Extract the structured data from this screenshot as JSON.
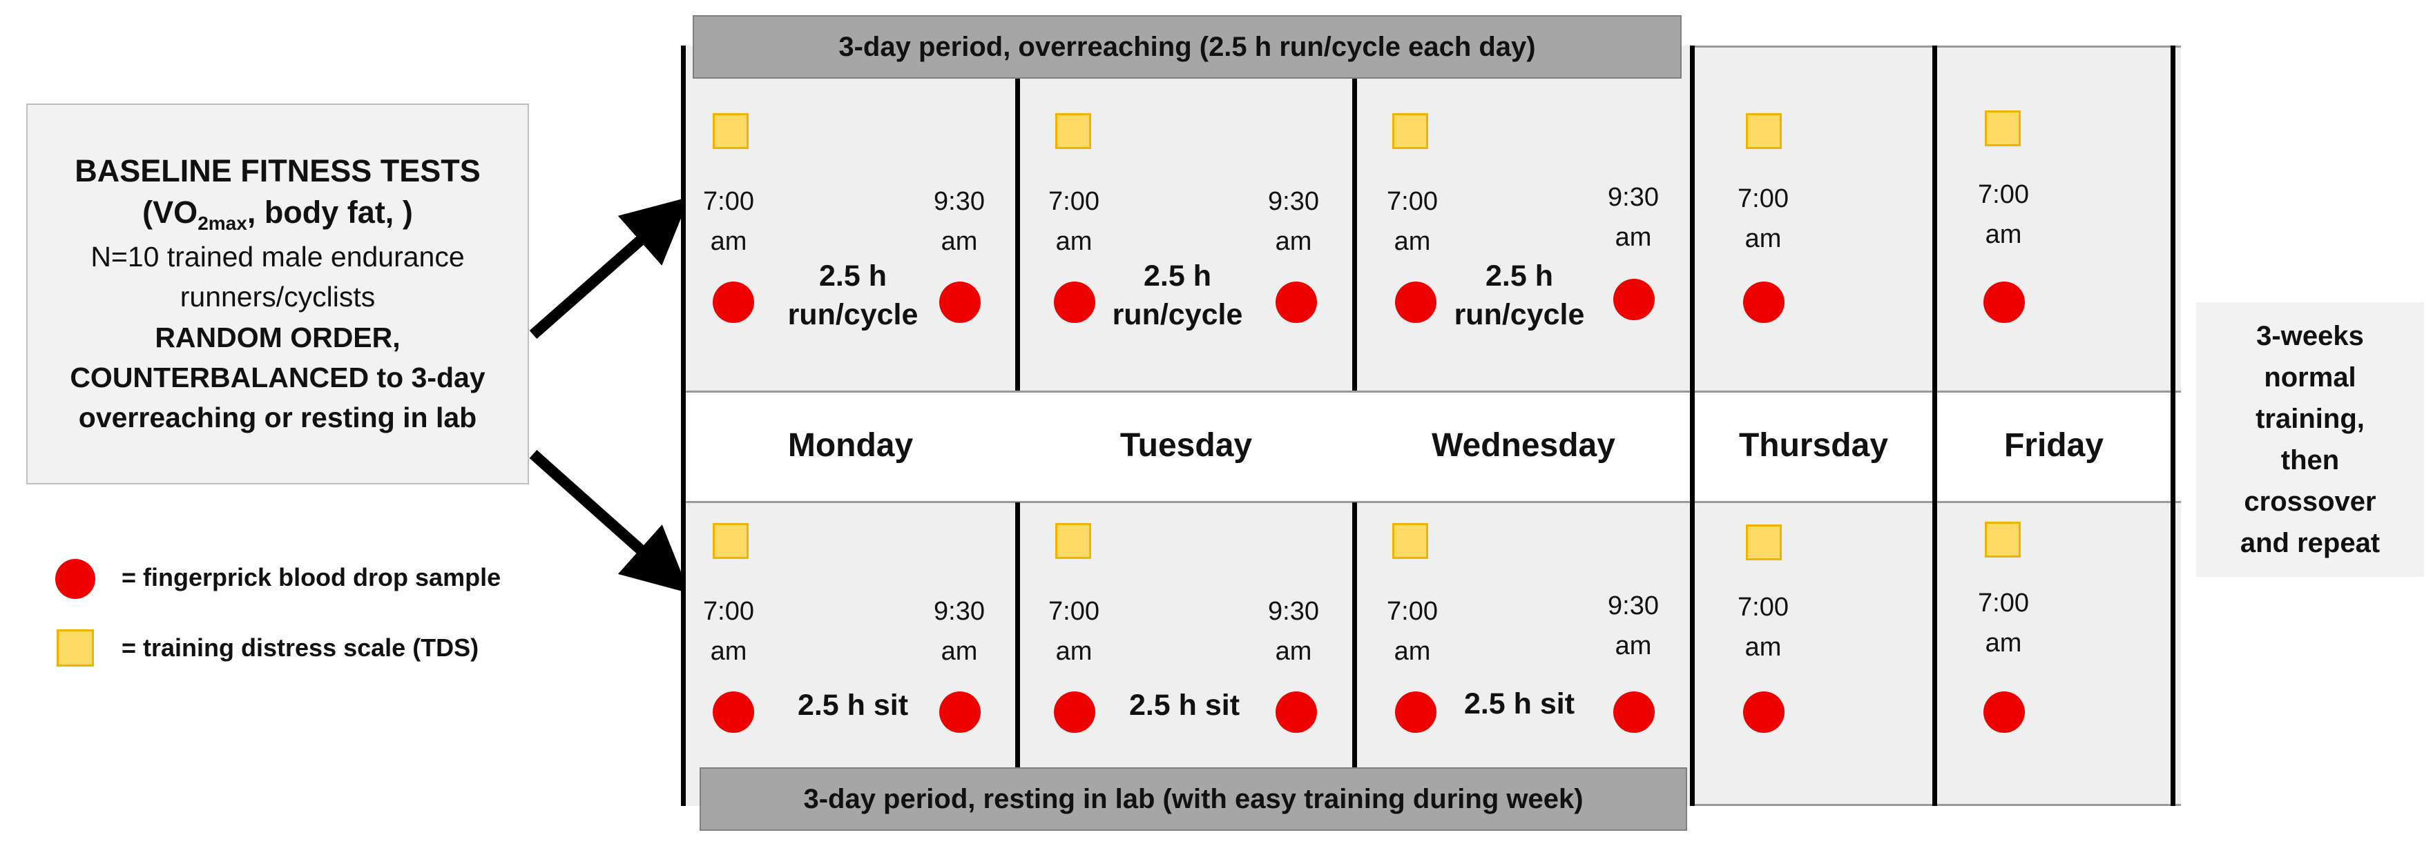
{
  "baseline": {
    "title_prefix": "BASELINE FITNESS TESTS",
    "title_line2_pre": "(VO",
    "title_line2_sub": "2max",
    "title_line2_post": ",  body fat, )",
    "line3": "N=10 trained male endurance",
    "line4": "runners/cyclists",
    "line5": "RANDOM ORDER,",
    "line6": "COUNTERBALANCED to 3-day",
    "line7": "overreaching or resting in lab"
  },
  "banners": {
    "top": "3-day period, overreaching (2.5 h run/cycle each day)",
    "bottom": "3-day period, resting in lab (with easy training during week)"
  },
  "days": [
    "Monday",
    "Tuesday",
    "Wednesday",
    "Thursday",
    "Friday"
  ],
  "times": {
    "start_hour": "7:00",
    "end_hour": "9:30",
    "ampm": "am"
  },
  "activity": {
    "top_line1": "2.5 h",
    "top_line2": "run/cycle",
    "bottom": "2.5 h sit"
  },
  "legend": {
    "dot": "= fingerprick blood drop sample",
    "square": "= training distress scale (TDS)"
  },
  "right_note": [
    "3-weeks",
    "normal",
    "training,",
    "then",
    "crossover",
    "and repeat"
  ],
  "colors": {
    "dot": "#ee0000",
    "square_fill": "#ffd966",
    "square_border": "#f0b400",
    "panel": "#efefef",
    "banner": "#a6a6a6"
  }
}
